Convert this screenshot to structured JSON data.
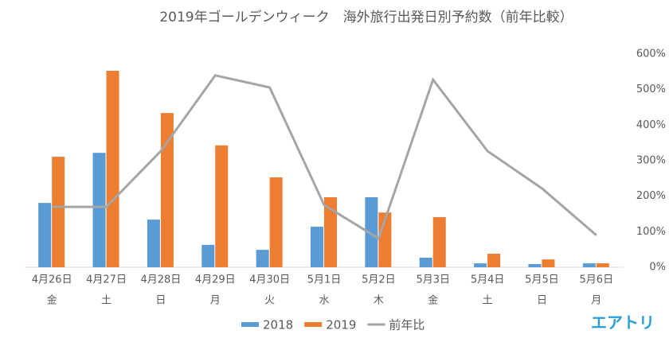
{
  "chart_data": {
    "type": "bar_line",
    "title": "2019年ゴールデンウィーク　海外旅行出発日別予約数（前年比較）",
    "categories": [
      "4月26日",
      "4月27日",
      "4月28日",
      "4月29日",
      "4月30日",
      "5月1日",
      "5月2日",
      "5月3日",
      "5月4日",
      "5月5日",
      "5月6日"
    ],
    "weekdays": [
      "金",
      "土",
      "日",
      "月",
      "火",
      "水",
      "木",
      "金",
      "土",
      "日",
      "月"
    ],
    "series": [
      {
        "name": "2018",
        "color": "#5b9bd5",
        "type": "bar",
        "values": [
          181,
          322,
          134,
          63,
          49,
          114,
          197,
          27,
          11,
          9,
          11
        ]
      },
      {
        "name": "2019",
        "color": "#ed7d31",
        "type": "bar",
        "values": [
          311,
          553,
          434,
          343,
          253,
          197,
          154,
          141,
          38,
          22,
          11
        ]
      },
      {
        "name": "前年比",
        "color": "#a5a5a5",
        "type": "line",
        "axis": "y2",
        "values": [
          170,
          170,
          327,
          540,
          506,
          175,
          81,
          528,
          327,
          222,
          90
        ]
      }
    ],
    "ylim": [
      0,
      600
    ],
    "y2lim": [
      0,
      600
    ],
    "y2ticks": [
      {
        "value": 0,
        "label": "0%"
      },
      {
        "value": 100,
        "label": "100%"
      },
      {
        "value": 200,
        "label": "200%"
      },
      {
        "value": 300,
        "label": "300%"
      },
      {
        "value": 400,
        "label": "400%"
      },
      {
        "value": 500,
        "label": "500%"
      },
      {
        "value": 600,
        "label": "600%"
      }
    ],
    "logo": "エアトリ"
  }
}
